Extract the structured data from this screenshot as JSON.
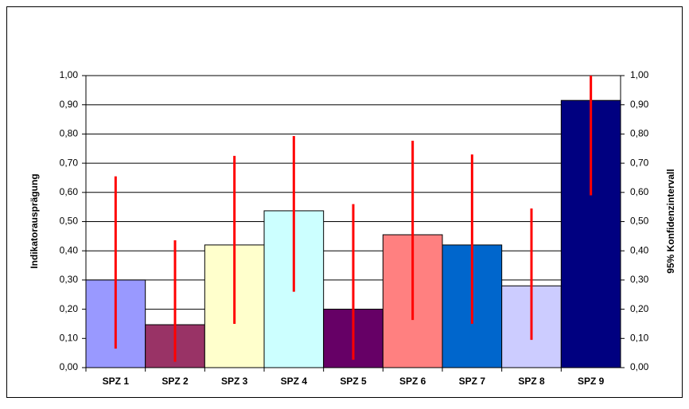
{
  "chart_data": {
    "type": "bar",
    "y_label": "Indikatorausprägung",
    "y2_label": "95% Konfidenzintervall",
    "categories": [
      "SPZ 1",
      "SPZ 2",
      "SPZ 3",
      "SPZ 4",
      "SPZ 5",
      "SPZ 6",
      "SPZ 7",
      "SPZ 8",
      "SPZ 9"
    ],
    "values": [
      0.3,
      0.147,
      0.42,
      0.537,
      0.2,
      0.455,
      0.42,
      0.28,
      0.915
    ],
    "ci_low": [
      0.065,
      0.02,
      0.15,
      0.26,
      0.027,
      0.163,
      0.15,
      0.095,
      0.59
    ],
    "ci_high": [
      0.655,
      0.436,
      0.725,
      0.793,
      0.56,
      0.777,
      0.73,
      0.545,
      1.0
    ],
    "colors": [
      "#9999ff",
      "#993366",
      "#ffffcc",
      "#ccffff",
      "#660066",
      "#ff8080",
      "#0066cc",
      "#ccccff",
      "#000080"
    ],
    "error_color": "#ff0000",
    "ylim": [
      0,
      1
    ],
    "yticks": [
      {
        "value": 0,
        "label": "0,00"
      },
      {
        "value": 0.1,
        "label": "0,10"
      },
      {
        "value": 0.2,
        "label": "0,20"
      },
      {
        "value": 0.3,
        "label": "0,30"
      },
      {
        "value": 0.4,
        "label": "0,40"
      },
      {
        "value": 0.5,
        "label": "0,50"
      },
      {
        "value": 0.6,
        "label": "0,60"
      },
      {
        "value": 0.7,
        "label": "0,70"
      },
      {
        "value": 0.8,
        "label": "0,80"
      },
      {
        "value": 0.9,
        "label": "0,90"
      },
      {
        "value": 1,
        "label": "1,00"
      }
    ],
    "y2lim": [
      0,
      1
    ],
    "y2ticks": [
      {
        "value": 0,
        "label": "0,00"
      },
      {
        "value": 0.1,
        "label": "0,10"
      },
      {
        "value": 0.2,
        "label": "0,20"
      },
      {
        "value": 0.3,
        "label": "0,30"
      },
      {
        "value": 0.4,
        "label": "0,40"
      },
      {
        "value": 0.5,
        "label": "0,50"
      },
      {
        "value": 0.6,
        "label": "0,60"
      },
      {
        "value": 0.7,
        "label": "0,70"
      },
      {
        "value": 0.8,
        "label": "0,80"
      },
      {
        "value": 0.9,
        "label": "0,90"
      },
      {
        "value": 1,
        "label": "1,00"
      }
    ],
    "grid": true
  }
}
